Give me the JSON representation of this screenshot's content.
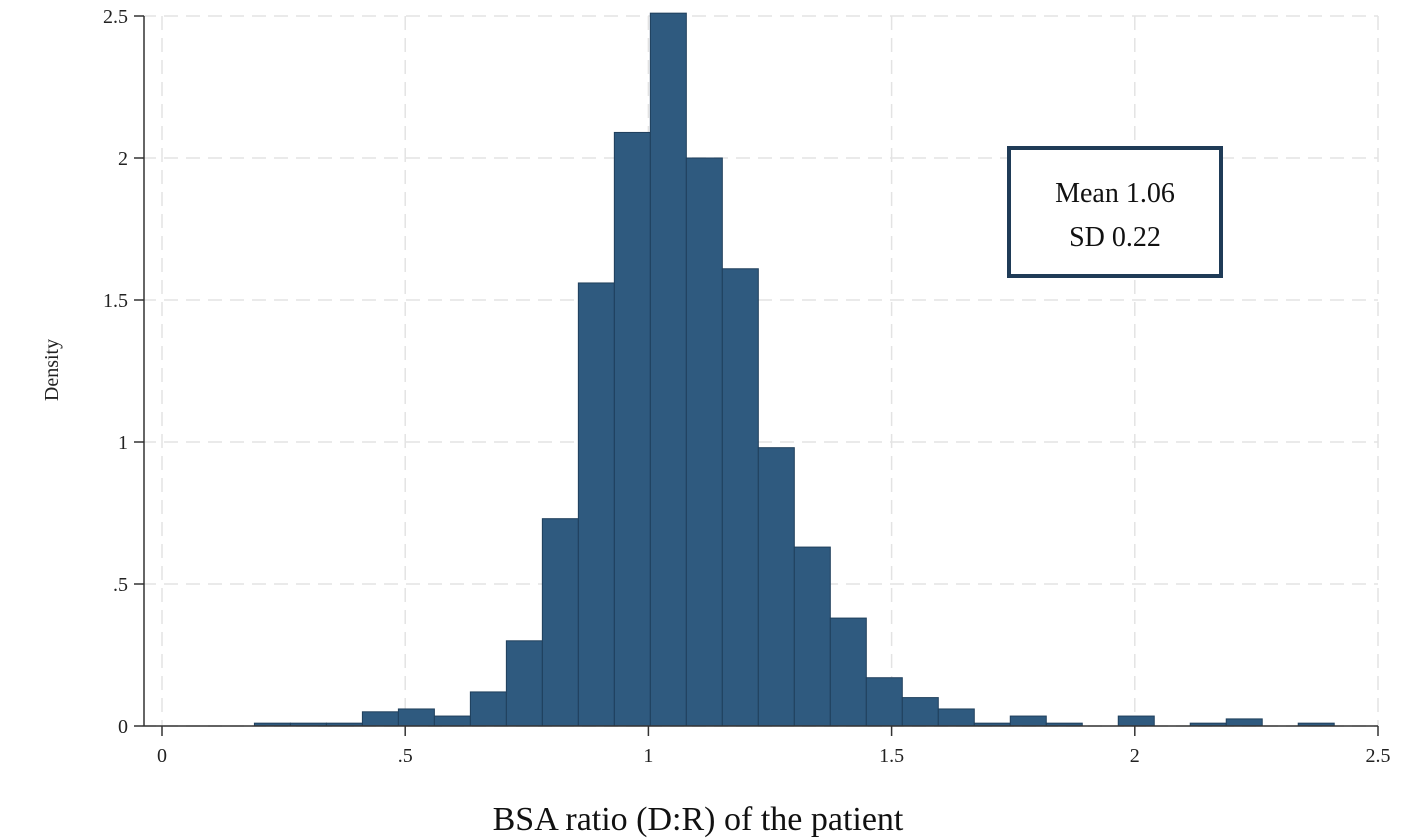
{
  "chart_data": {
    "type": "bar",
    "histogram": true,
    "xlabel": "BSA ratio (D:R) of the patient",
    "ylabel": "Density",
    "xlim": [
      0,
      2.5
    ],
    "ylim": [
      0,
      2.5
    ],
    "x_ticks": [
      {
        "value": 0,
        "label": "0"
      },
      {
        "value": 0.5,
        "label": ".5"
      },
      {
        "value": 1,
        "label": "1"
      },
      {
        "value": 1.5,
        "label": "1.5"
      },
      {
        "value": 2,
        "label": "2"
      },
      {
        "value": 2.5,
        "label": "2.5"
      }
    ],
    "y_ticks": [
      {
        "value": 0,
        "label": "0"
      },
      {
        "value": 0.5,
        "label": ".5"
      },
      {
        "value": 1,
        "label": "1"
      },
      {
        "value": 1.5,
        "label": "1.5"
      },
      {
        "value": 2,
        "label": "2"
      },
      {
        "value": 2.5,
        "label": "2.5"
      }
    ],
    "bin_width": 0.074,
    "bins": [
      {
        "start": 0.19,
        "value": 0.01
      },
      {
        "start": 0.264,
        "value": 0.01
      },
      {
        "start": 0.338,
        "value": 0.01
      },
      {
        "start": 0.412,
        "value": 0.05
      },
      {
        "start": 0.486,
        "value": 0.06
      },
      {
        "start": 0.56,
        "value": 0.035
      },
      {
        "start": 0.634,
        "value": 0.12
      },
      {
        "start": 0.708,
        "value": 0.3
      },
      {
        "start": 0.782,
        "value": 0.73
      },
      {
        "start": 0.856,
        "value": 1.56
      },
      {
        "start": 0.93,
        "value": 2.09
      },
      {
        "start": 1.004,
        "value": 2.51
      },
      {
        "start": 1.078,
        "value": 2.0
      },
      {
        "start": 1.152,
        "value": 1.61
      },
      {
        "start": 1.226,
        "value": 0.98
      },
      {
        "start": 1.3,
        "value": 0.63
      },
      {
        "start": 1.374,
        "value": 0.38
      },
      {
        "start": 1.448,
        "value": 0.17
      },
      {
        "start": 1.522,
        "value": 0.1
      },
      {
        "start": 1.596,
        "value": 0.06
      },
      {
        "start": 1.67,
        "value": 0.01
      },
      {
        "start": 1.744,
        "value": 0.035
      },
      {
        "start": 1.818,
        "value": 0.01
      },
      {
        "start": 1.966,
        "value": 0.035
      },
      {
        "start": 2.114,
        "value": 0.01
      },
      {
        "start": 2.188,
        "value": 0.025
      },
      {
        "start": 2.336,
        "value": 0.01
      }
    ],
    "grid": true,
    "bar_color": "#2f5a7f",
    "annotation": {
      "lines": [
        "Mean 1.06",
        "SD 0.22"
      ],
      "placement": "top-right",
      "border_color": "#1f3b57"
    }
  }
}
